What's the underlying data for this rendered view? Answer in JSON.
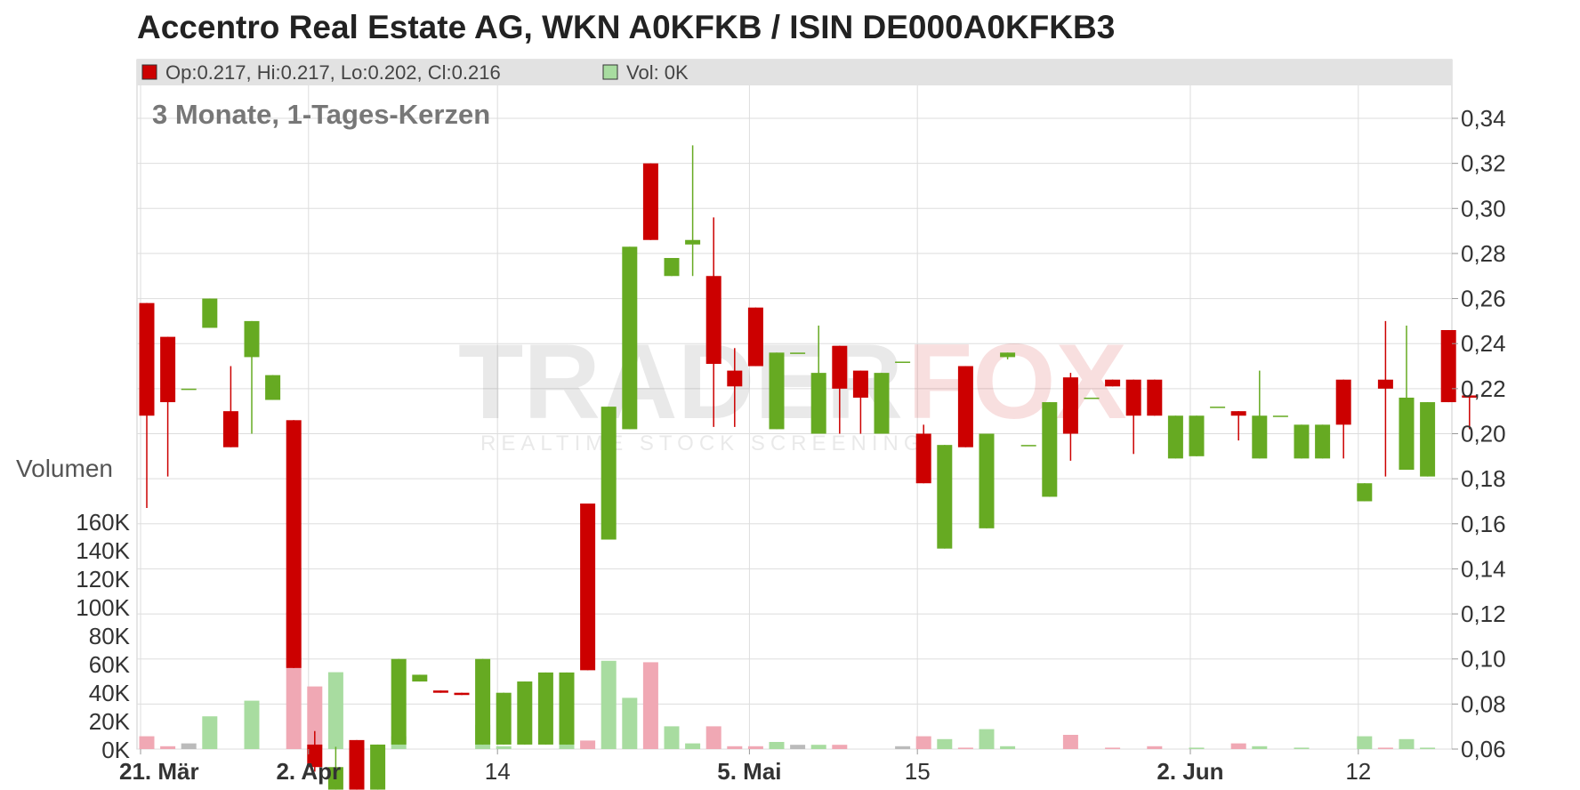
{
  "title": "Accentro Real Estate AG, WKN A0KFKB / ISIN DE000A0KFKB3",
  "legend": {
    "ohlc_text": "Op:0.217, Hi:0.217, Lo:0.202, Cl:0.216",
    "vol_text": "Vol: 0K",
    "ohlc_color": "#cc0000",
    "vol_color": "#a8dca0"
  },
  "subtitle": "3 Monate, 1-Tages-Kerzen",
  "watermark": {
    "brand_left": "TRADER",
    "brand_right": "FOX",
    "tagline": "REALTIME STOCK SCREENING"
  },
  "colors": {
    "up": "#66aa22",
    "down": "#cc0000",
    "vol_up": "#a8dca0",
    "vol_down": "#f0a8b4",
    "vol_neutral": "#bbbbbb",
    "grid": "#dddddd"
  },
  "chart_data": {
    "type": "candlestick",
    "price_axis": {
      "min": 0.06,
      "max": 0.34,
      "ticks": [
        "0,34",
        "0,32",
        "0,30",
        "0,28",
        "0,26",
        "0,24",
        "0,22",
        "0,20",
        "0,18",
        "0,16",
        "0,14",
        "0,12",
        "0,10",
        "0,08",
        "0,06"
      ]
    },
    "volume_axis": {
      "label": "Volumen",
      "min": 0,
      "max": 160000,
      "ticks": [
        "160K",
        "140K",
        "120K",
        "100K",
        "80K",
        "60K",
        "40K",
        "20K",
        "0K"
      ]
    },
    "x_ticks": [
      {
        "label": "21. Mär",
        "index": 0,
        "bold": true
      },
      {
        "label": "2. Apr",
        "index": 8,
        "bold": true
      },
      {
        "label": "14",
        "index": 17,
        "bold": false
      },
      {
        "label": "5. Mai",
        "index": 29,
        "bold": true
      },
      {
        "label": "15",
        "index": 37,
        "bold": false
      },
      {
        "label": "2. Jun",
        "index": 50,
        "bold": true
      },
      {
        "label": "12",
        "index": 58,
        "bold": false
      }
    ],
    "candles": [
      {
        "o": 0.258,
        "h": 0.258,
        "l": 0.167,
        "c": 0.208,
        "v": 9000
      },
      {
        "o": 0.243,
        "h": 0.243,
        "l": 0.181,
        "c": 0.214,
        "v": 2000
      },
      {
        "o": 0.22,
        "h": 0.22,
        "l": 0.22,
        "c": 0.22,
        "v": 4000
      },
      {
        "o": 0.247,
        "h": 0.26,
        "l": 0.247,
        "c": 0.26,
        "v": 23000
      },
      {
        "o": 0.21,
        "h": 0.23,
        "l": 0.194,
        "c": 0.194,
        "v": 0
      },
      {
        "o": 0.234,
        "h": 0.25,
        "l": 0.2,
        "c": 0.25,
        "v": 34000
      },
      {
        "o": 0.215,
        "h": 0.226,
        "l": 0.215,
        "c": 0.226,
        "v": 0
      },
      {
        "o": 0.206,
        "h": 0.206,
        "l": 0.096,
        "c": 0.096,
        "v": 96000
      },
      {
        "o": 0.062,
        "h": 0.068,
        "l": 0.05,
        "c": 0.052,
        "v": 44000
      },
      {
        "o": 0.042,
        "h": 0.061,
        "l": 0.042,
        "c": 0.052,
        "v": 54000
      },
      {
        "o": 0.064,
        "h": 0.064,
        "l": 0.042,
        "c": 0.042,
        "v": 1000
      },
      {
        "o": 0.042,
        "h": 0.062,
        "l": 0.042,
        "c": 0.062,
        "v": 1000
      },
      {
        "o": 0.062,
        "h": 0.1,
        "l": 0.062,
        "c": 0.1,
        "v": 9000
      },
      {
        "o": 0.09,
        "h": 0.093,
        "l": 0.09,
        "c": 0.093,
        "v": 0
      },
      {
        "o": 0.086,
        "h": 0.086,
        "l": 0.085,
        "c": 0.085,
        "v": 0
      },
      {
        "o": 0.085,
        "h": 0.085,
        "l": 0.084,
        "c": 0.084,
        "v": 0
      },
      {
        "o": 0.062,
        "h": 0.1,
        "l": 0.062,
        "c": 0.1,
        "v": 17000
      },
      {
        "o": 0.062,
        "h": 0.085,
        "l": 0.062,
        "c": 0.085,
        "v": 2000
      },
      {
        "o": 0.062,
        "h": 0.09,
        "l": 0.062,
        "c": 0.09,
        "v": 0
      },
      {
        "o": 0.062,
        "h": 0.094,
        "l": 0.062,
        "c": 0.094,
        "v": 0
      },
      {
        "o": 0.062,
        "h": 0.094,
        "l": 0.062,
        "c": 0.094,
        "v": 5000
      },
      {
        "o": 0.169,
        "h": 0.169,
        "l": 0.095,
        "c": 0.095,
        "v": 6000
      },
      {
        "o": 0.153,
        "h": 0.212,
        "l": 0.153,
        "c": 0.212,
        "v": 62000
      },
      {
        "o": 0.202,
        "h": 0.283,
        "l": 0.202,
        "c": 0.283,
        "v": 36000
      },
      {
        "o": 0.32,
        "h": 0.32,
        "l": 0.286,
        "c": 0.286,
        "v": 61000
      },
      {
        "o": 0.27,
        "h": 0.278,
        "l": 0.27,
        "c": 0.278,
        "v": 16000
      },
      {
        "o": 0.284,
        "h": 0.328,
        "l": 0.27,
        "c": 0.286,
        "v": 4000
      },
      {
        "o": 0.27,
        "h": 0.296,
        "l": 0.203,
        "c": 0.231,
        "v": 16000
      },
      {
        "o": 0.228,
        "h": 0.238,
        "l": 0.203,
        "c": 0.221,
        "v": 2000
      },
      {
        "o": 0.256,
        "h": 0.256,
        "l": 0.23,
        "c": 0.23,
        "v": 2000
      },
      {
        "o": 0.202,
        "h": 0.236,
        "l": 0.202,
        "c": 0.236,
        "v": 5000
      },
      {
        "o": 0.236,
        "h": 0.236,
        "l": 0.236,
        "c": 0.236,
        "v": 3000
      },
      {
        "o": 0.2,
        "h": 0.248,
        "l": 0.2,
        "c": 0.227,
        "v": 3000
      },
      {
        "o": 0.239,
        "h": 0.239,
        "l": 0.2,
        "c": 0.22,
        "v": 3000
      },
      {
        "o": 0.228,
        "h": 0.228,
        "l": 0.2,
        "c": 0.216,
        "v": 0
      },
      {
        "o": 0.2,
        "h": 0.227,
        "l": 0.2,
        "c": 0.227,
        "v": 0
      },
      {
        "o": 0.232,
        "h": 0.232,
        "l": 0.232,
        "c": 0.232,
        "v": 2000
      },
      {
        "o": 0.2,
        "h": 0.204,
        "l": 0.178,
        "c": 0.178,
        "v": 9000
      },
      {
        "o": 0.149,
        "h": 0.195,
        "l": 0.149,
        "c": 0.195,
        "v": 7000
      },
      {
        "o": 0.23,
        "h": 0.23,
        "l": 0.194,
        "c": 0.194,
        "v": 1000
      },
      {
        "o": 0.158,
        "h": 0.2,
        "l": 0.158,
        "c": 0.2,
        "v": 14000
      },
      {
        "o": 0.234,
        "h": 0.236,
        "l": 0.233,
        "c": 0.236,
        "v": 2000
      },
      {
        "o": 0.195,
        "h": 0.195,
        "l": 0.195,
        "c": 0.195,
        "v": 0
      },
      {
        "o": 0.172,
        "h": 0.214,
        "l": 0.172,
        "c": 0.214,
        "v": 0
      },
      {
        "o": 0.225,
        "h": 0.227,
        "l": 0.188,
        "c": 0.2,
        "v": 10000
      },
      {
        "o": 0.216,
        "h": 0.216,
        "l": 0.216,
        "c": 0.216,
        "v": 0
      },
      {
        "o": 0.224,
        "h": 0.224,
        "l": 0.221,
        "c": 0.221,
        "v": 1000
      },
      {
        "o": 0.224,
        "h": 0.224,
        "l": 0.191,
        "c": 0.208,
        "v": 0
      },
      {
        "o": 0.224,
        "h": 0.224,
        "l": 0.208,
        "c": 0.208,
        "v": 2000
      },
      {
        "o": 0.189,
        "h": 0.208,
        "l": 0.189,
        "c": 0.208,
        "v": 0
      },
      {
        "o": 0.19,
        "h": 0.208,
        "l": 0.19,
        "c": 0.208,
        "v": 1000
      },
      {
        "o": 0.212,
        "h": 0.212,
        "l": 0.212,
        "c": 0.212,
        "v": 0
      },
      {
        "o": 0.21,
        "h": 0.21,
        "l": 0.197,
        "c": 0.208,
        "v": 4000
      },
      {
        "o": 0.189,
        "h": 0.228,
        "l": 0.189,
        "c": 0.208,
        "v": 2000
      },
      {
        "o": 0.208,
        "h": 0.208,
        "l": 0.208,
        "c": 0.208,
        "v": 0
      },
      {
        "o": 0.189,
        "h": 0.204,
        "l": 0.189,
        "c": 0.204,
        "v": 1000
      },
      {
        "o": 0.189,
        "h": 0.204,
        "l": 0.189,
        "c": 0.204,
        "v": 0
      },
      {
        "o": 0.224,
        "h": 0.224,
        "l": 0.189,
        "c": 0.204,
        "v": 0
      },
      {
        "o": 0.17,
        "h": 0.178,
        "l": 0.17,
        "c": 0.178,
        "v": 9000
      },
      {
        "o": 0.224,
        "h": 0.25,
        "l": 0.181,
        "c": 0.22,
        "v": 1000
      },
      {
        "o": 0.184,
        "h": 0.248,
        "l": 0.184,
        "c": 0.216,
        "v": 7000
      },
      {
        "o": 0.181,
        "h": 0.214,
        "l": 0.181,
        "c": 0.214,
        "v": 1000
      },
      {
        "o": 0.246,
        "h": 0.246,
        "l": 0.214,
        "c": 0.214,
        "v": 0
      },
      {
        "o": 0.217,
        "h": 0.217,
        "l": 0.202,
        "c": 0.216,
        "v": 0
      }
    ]
  }
}
